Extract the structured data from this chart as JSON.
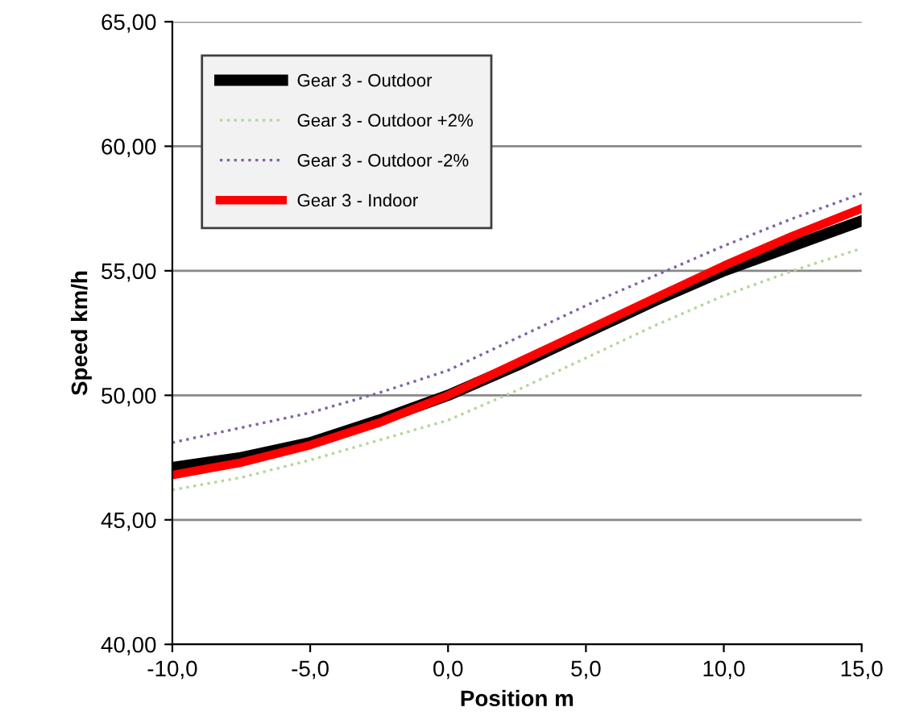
{
  "chart_data": {
    "type": "line",
    "xlabel": "Position m",
    "ylabel": "Speed km/h",
    "x": [
      -10,
      -7.5,
      -5,
      -2.5,
      0,
      2.5,
      5,
      7.5,
      10,
      12.5,
      15
    ],
    "series": [
      {
        "name": "Gear 3 - Outdoor",
        "color": "#000000",
        "line_style": "solid",
        "values": [
          47.1,
          47.5,
          48.1,
          49.0,
          50.0,
          51.2,
          52.5,
          53.8,
          55.0,
          56.0,
          57.0
        ]
      },
      {
        "name": "Gear 3 - Outdoor +2%",
        "color": "#b5d69a",
        "line_style": "dotted",
        "values": [
          46.2,
          46.7,
          47.4,
          48.2,
          49.0,
          50.2,
          51.5,
          52.8,
          54.0,
          55.0,
          55.9
        ]
      },
      {
        "name": "Gear 3 - Outdoor -2%",
        "color": "#8064a2",
        "line_style": "dotted",
        "values": [
          48.1,
          48.7,
          49.3,
          50.1,
          51.0,
          52.3,
          53.6,
          54.8,
          56.0,
          57.1,
          58.1
        ]
      },
      {
        "name": "Gear 3 - Indoor",
        "color": "#ff0000",
        "line_style": "solid",
        "values": [
          46.8,
          47.3,
          48.0,
          48.9,
          50.0,
          51.3,
          52.6,
          53.9,
          55.2,
          56.4,
          57.5
        ]
      }
    ],
    "xlim": [
      -10,
      15
    ],
    "xticks": [
      {
        "value": -10,
        "label": "-10,0"
      },
      {
        "value": -5,
        "label": "-5,0"
      },
      {
        "value": 0,
        "label": "0,0"
      },
      {
        "value": 5,
        "label": "5,0"
      },
      {
        "value": 10,
        "label": "10,0"
      },
      {
        "value": 15,
        "label": "15,0"
      }
    ],
    "ylim": [
      40,
      65
    ],
    "yticks": [
      {
        "value": 40,
        "label": "40,00"
      },
      {
        "value": 45,
        "label": "45,00"
      },
      {
        "value": 50,
        "label": "50,00"
      },
      {
        "value": 55,
        "label": "55,00"
      },
      {
        "value": 60,
        "label": "60,00"
      },
      {
        "value": 65,
        "label": "65,00"
      }
    ],
    "grid": "y",
    "legend": "top left",
    "marker": "none"
  }
}
